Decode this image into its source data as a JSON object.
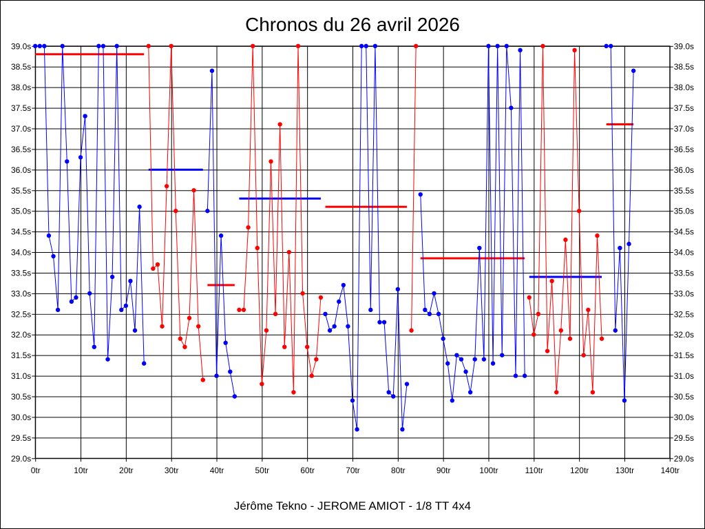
{
  "chart_data": {
    "type": "line",
    "title": "Chronos du 26 avril 2026",
    "subtitle": "Jérôme Tekno - JEROME AMIOT - 1/8 TT 4x4",
    "x_ticks": [
      "0tr",
      "10tr",
      "20tr",
      "30tr",
      "40tr",
      "50tr",
      "60tr",
      "70tr",
      "80tr",
      "90tr",
      "100tr",
      "110tr",
      "120tr",
      "130tr",
      "140tr"
    ],
    "y_ticks": [
      "29.0s",
      "29.5s",
      "30.0s",
      "30.5s",
      "31.0s",
      "31.5s",
      "32.0s",
      "32.5s",
      "33.0s",
      "33.5s",
      "34.0s",
      "34.5s",
      "35.0s",
      "35.5s",
      "36.0s",
      "36.5s",
      "37.0s",
      "37.5s",
      "38.0s",
      "38.5s",
      "39.0s"
    ],
    "xlim": [
      0,
      140
    ],
    "ylim": [
      29.0,
      39.0
    ],
    "grid": true,
    "colors": {
      "blue": "#0000ff",
      "red": "#ff0000"
    },
    "series": [
      {
        "color": "#0000ff",
        "points": [
          [
            0,
            39.0
          ],
          [
            1,
            39.0
          ],
          [
            2,
            39.0
          ],
          [
            3,
            34.4
          ],
          [
            4,
            33.9
          ],
          [
            5,
            32.6
          ],
          [
            6,
            39.0
          ],
          [
            7,
            36.2
          ],
          [
            8,
            32.8
          ],
          [
            9,
            32.9
          ],
          [
            10,
            36.3
          ],
          [
            11,
            37.3
          ],
          [
            12,
            33.0
          ],
          [
            13,
            31.7
          ],
          [
            14,
            39.0
          ],
          [
            15,
            39.0
          ],
          [
            16,
            31.4
          ],
          [
            17,
            33.4
          ],
          [
            18,
            39.0
          ],
          [
            19,
            32.6
          ],
          [
            20,
            32.7
          ],
          [
            21,
            33.3
          ],
          [
            22,
            32.1
          ],
          [
            23,
            35.1
          ],
          [
            24,
            31.3
          ]
        ]
      },
      {
        "color": "#ff0000",
        "points": [
          [
            25,
            39.0
          ],
          [
            26,
            33.6
          ],
          [
            27,
            33.7
          ],
          [
            28,
            32.2
          ],
          [
            29,
            35.6
          ],
          [
            30,
            39.0
          ],
          [
            31,
            35.0
          ],
          [
            32,
            31.9
          ],
          [
            33,
            31.7
          ],
          [
            34,
            32.4
          ],
          [
            35,
            35.5
          ],
          [
            36,
            32.2
          ],
          [
            37,
            30.9
          ]
        ]
      },
      {
        "color": "#0000ff",
        "points": [
          [
            38,
            35.0
          ],
          [
            39,
            38.4
          ],
          [
            40,
            31.0
          ],
          [
            41,
            34.4
          ],
          [
            42,
            31.8
          ],
          [
            43,
            31.1
          ],
          [
            44,
            30.5
          ]
        ]
      },
      {
        "color": "#ff0000",
        "points": [
          [
            45,
            32.6
          ],
          [
            46,
            32.6
          ],
          [
            47,
            34.6
          ],
          [
            48,
            39.0
          ],
          [
            49,
            34.1
          ],
          [
            50,
            30.8
          ],
          [
            51,
            32.1
          ],
          [
            52,
            36.2
          ],
          [
            53,
            32.5
          ],
          [
            54,
            37.1
          ],
          [
            55,
            31.7
          ],
          [
            56,
            34.0
          ],
          [
            57,
            30.6
          ],
          [
            58,
            39.0
          ],
          [
            59,
            33.0
          ],
          [
            60,
            31.7
          ],
          [
            61,
            31.0
          ],
          [
            62,
            31.4
          ],
          [
            63,
            32.9
          ]
        ]
      },
      {
        "color": "#0000ff",
        "points": [
          [
            64,
            32.5
          ],
          [
            65,
            32.1
          ],
          [
            66,
            32.2
          ],
          [
            67,
            32.8
          ],
          [
            68,
            33.2
          ],
          [
            69,
            32.2
          ],
          [
            70,
            30.4
          ],
          [
            71,
            29.7
          ],
          [
            72,
            39.0
          ],
          [
            73,
            39.0
          ],
          [
            74,
            32.6
          ],
          [
            75,
            39.0
          ],
          [
            76,
            32.3
          ],
          [
            77,
            32.3
          ],
          [
            78,
            30.6
          ],
          [
            79,
            30.5
          ],
          [
            80,
            33.1
          ],
          [
            81,
            29.7
          ],
          [
            82,
            30.8
          ]
        ]
      },
      {
        "color": "#ff0000",
        "points": [
          [
            83,
            32.1
          ],
          [
            84,
            39.0
          ]
        ]
      },
      {
        "color": "#0000ff",
        "points": [
          [
            85,
            35.4
          ],
          [
            86,
            32.6
          ],
          [
            87,
            32.5
          ],
          [
            88,
            33.0
          ],
          [
            89,
            32.5
          ],
          [
            90,
            31.9
          ],
          [
            91,
            31.3
          ],
          [
            92,
            30.4
          ],
          [
            93,
            31.5
          ],
          [
            94,
            31.4
          ],
          [
            95,
            31.1
          ],
          [
            96,
            30.6
          ],
          [
            97,
            31.4
          ],
          [
            98,
            34.1
          ],
          [
            99,
            31.4
          ],
          [
            100,
            39.0
          ],
          [
            101,
            31.3
          ],
          [
            102,
            39.0
          ],
          [
            103,
            31.5
          ],
          [
            104,
            39.0
          ],
          [
            105,
            37.5
          ],
          [
            106,
            31.0
          ],
          [
            107,
            38.9
          ],
          [
            108,
            31.0
          ]
        ]
      },
      {
        "color": "#ff0000",
        "points": [
          [
            109,
            32.9
          ],
          [
            110,
            32.0
          ],
          [
            111,
            32.5
          ],
          [
            112,
            39.0
          ],
          [
            113,
            31.6
          ],
          [
            114,
            33.3
          ],
          [
            115,
            30.6
          ],
          [
            116,
            32.1
          ],
          [
            117,
            34.3
          ],
          [
            118,
            31.9
          ],
          [
            119,
            38.9
          ],
          [
            120,
            35.0
          ],
          [
            121,
            31.5
          ],
          [
            122,
            32.6
          ],
          [
            123,
            30.6
          ],
          [
            124,
            34.4
          ],
          [
            125,
            31.9
          ]
        ]
      },
      {
        "color": "#0000ff",
        "points": [
          [
            126,
            39.0
          ],
          [
            127,
            39.0
          ],
          [
            128,
            32.1
          ],
          [
            129,
            34.1
          ],
          [
            130,
            30.4
          ],
          [
            131,
            34.2
          ],
          [
            132,
            38.4
          ]
        ]
      }
    ],
    "averages": [
      {
        "color": "#ff0000",
        "x0": 0,
        "x1": 24,
        "y": 38.8
      },
      {
        "color": "#0000ff",
        "x0": 25,
        "x1": 37,
        "y": 36.0
      },
      {
        "color": "#ff0000",
        "x0": 38,
        "x1": 44,
        "y": 33.2
      },
      {
        "color": "#0000ff",
        "x0": 45,
        "x1": 63,
        "y": 35.3
      },
      {
        "color": "#ff0000",
        "x0": 64,
        "x1": 82,
        "y": 35.1
      },
      {
        "color": "#ff0000",
        "x0": 85,
        "x1": 108,
        "y": 33.85
      },
      {
        "color": "#0000ff",
        "x0": 109,
        "x1": 125,
        "y": 33.4
      },
      {
        "color": "#ff0000",
        "x0": 126,
        "x1": 132,
        "y": 37.1
      }
    ]
  }
}
